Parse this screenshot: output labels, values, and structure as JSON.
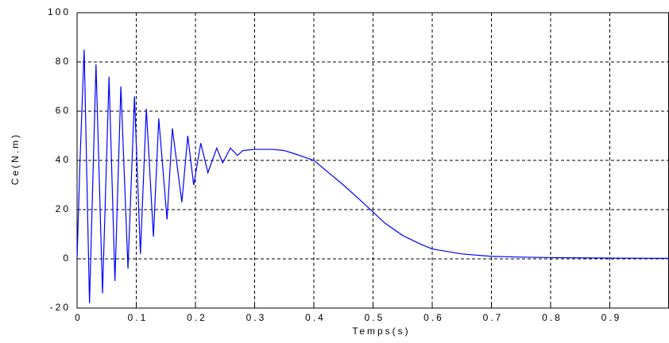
{
  "chart_data": {
    "type": "line",
    "x_label": "Temps(s)",
    "y_label": "Ce(N.m)",
    "xlim": [
      0,
      1
    ],
    "ylim": [
      -20,
      100
    ],
    "xticks": [
      0,
      0.1,
      0.2,
      0.3,
      0.4,
      0.5,
      0.6,
      0.7,
      0.8,
      0.9
    ],
    "yticks": [
      -20,
      0,
      20,
      40,
      60,
      80,
      100
    ],
    "grid": true,
    "x": [
      0,
      0.005,
      0.012,
      0.021,
      0.032,
      0.043,
      0.054,
      0.064,
      0.074,
      0.086,
      0.097,
      0.107,
      0.117,
      0.129,
      0.138,
      0.152,
      0.161,
      0.177,
      0.187,
      0.197,
      0.209,
      0.221,
      0.236,
      0.246,
      0.259,
      0.271,
      0.28,
      0.3,
      0.33,
      0.35,
      0.37,
      0.4,
      0.42,
      0.45,
      0.48,
      0.5,
      0.52,
      0.55,
      0.58,
      0.6,
      0.65,
      0.7,
      0.75,
      0.8,
      0.9,
      1.0
    ],
    "series": [
      {
        "name": "Ce",
        "color": "#0000ff",
        "values": [
          0,
          40,
          85,
          -18,
          79,
          -14,
          74,
          -9,
          70,
          -4,
          66,
          2,
          61,
          9,
          57,
          16,
          53,
          23,
          50,
          30,
          47,
          35,
          45,
          39,
          45,
          42,
          44,
          44.5,
          44.5,
          44,
          42.5,
          40,
          36,
          30,
          23.5,
          19,
          14.5,
          9.5,
          6,
          4,
          2,
          1,
          0.7,
          0.5,
          0.3,
          0.2
        ]
      }
    ]
  }
}
